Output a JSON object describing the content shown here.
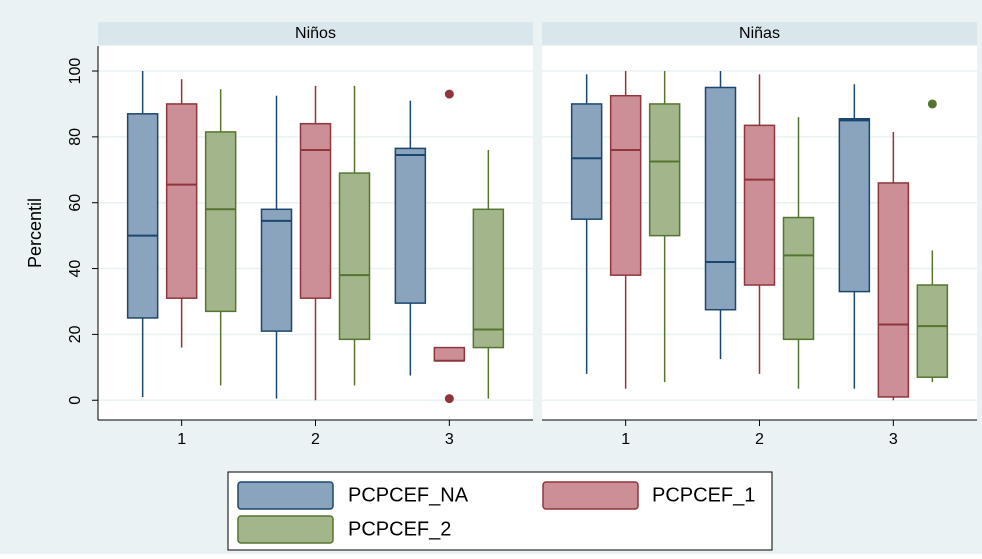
{
  "chart_data": {
    "type": "box",
    "ylabel": "Percentil",
    "ylim": [
      -6,
      107.6
    ],
    "yticks": [
      0,
      20,
      40,
      60,
      80,
      100
    ],
    "grid": true,
    "panels": [
      "Niños",
      "Niñas"
    ],
    "categories": [
      "1",
      "2",
      "3"
    ],
    "series": [
      {
        "name": "PCPCEF_NA",
        "color": "#8ba4bd",
        "stroke": "#1a476f",
        "values": [
          [
            {
              "min": 1,
              "q1": 25,
              "median": 50,
              "q3": 87,
              "max": 100
            },
            {
              "min": 0.5,
              "q1": 21,
              "median": 54.5,
              "q3": 58,
              "max": 92.5
            },
            {
              "min": 7.5,
              "q1": 29.5,
              "median": 74.5,
              "q3": 76.5,
              "max": 91
            }
          ],
          [
            {
              "min": 8,
              "q1": 55,
              "median": 73.5,
              "q3": 90,
              "max": 99
            },
            {
              "min": 12.5,
              "q1": 27.5,
              "median": 42,
              "q3": 95,
              "max": 100
            },
            {
              "min": 3.5,
              "q1": 33,
              "median": 85,
              "q3": 85.5,
              "max": 96
            }
          ]
        ]
      },
      {
        "name": "PCPCEF_1",
        "color": "#cc8f97",
        "stroke": "#90353b",
        "values": [
          [
            {
              "min": 16,
              "q1": 31,
              "median": 65.5,
              "q3": 90,
              "max": 97.5
            },
            {
              "min": 0,
              "q1": 31,
              "median": 76,
              "q3": 84,
              "max": 95.5
            },
            {
              "min": 12,
              "q1": 12,
              "median": 12,
              "q3": 16,
              "max": 16,
              "outliers": [
                93,
                0.5
              ]
            }
          ],
          [
            {
              "min": 3.5,
              "q1": 38,
              "median": 76,
              "q3": 92.5,
              "max": 100
            },
            {
              "min": 8,
              "q1": 35,
              "median": 67,
              "q3": 83.5,
              "max": 99
            },
            {
              "min": 0,
              "q1": 1,
              "median": 23,
              "q3": 66,
              "max": 81.5
            }
          ]
        ]
      },
      {
        "name": "PCPCEF_2",
        "color": "#a3b68b",
        "stroke": "#55752f",
        "values": [
          [
            {
              "min": 4.5,
              "q1": 27,
              "median": 58,
              "q3": 81.5,
              "max": 94.5
            },
            {
              "min": 4.5,
              "q1": 18.5,
              "median": 38,
              "q3": 69,
              "max": 95.5
            },
            {
              "min": 0.5,
              "q1": 16,
              "median": 21.5,
              "q3": 58,
              "max": 76
            }
          ],
          [
            {
              "min": 5.5,
              "q1": 50,
              "median": 72.5,
              "q3": 90,
              "max": 100
            },
            {
              "min": 3.5,
              "q1": 18.5,
              "median": 44,
              "q3": 55.5,
              "max": 86
            },
            {
              "min": 5.5,
              "q1": 7,
              "median": 22.5,
              "q3": 35,
              "max": 45.5,
              "outliers": [
                90
              ]
            }
          ]
        ]
      }
    ]
  }
}
